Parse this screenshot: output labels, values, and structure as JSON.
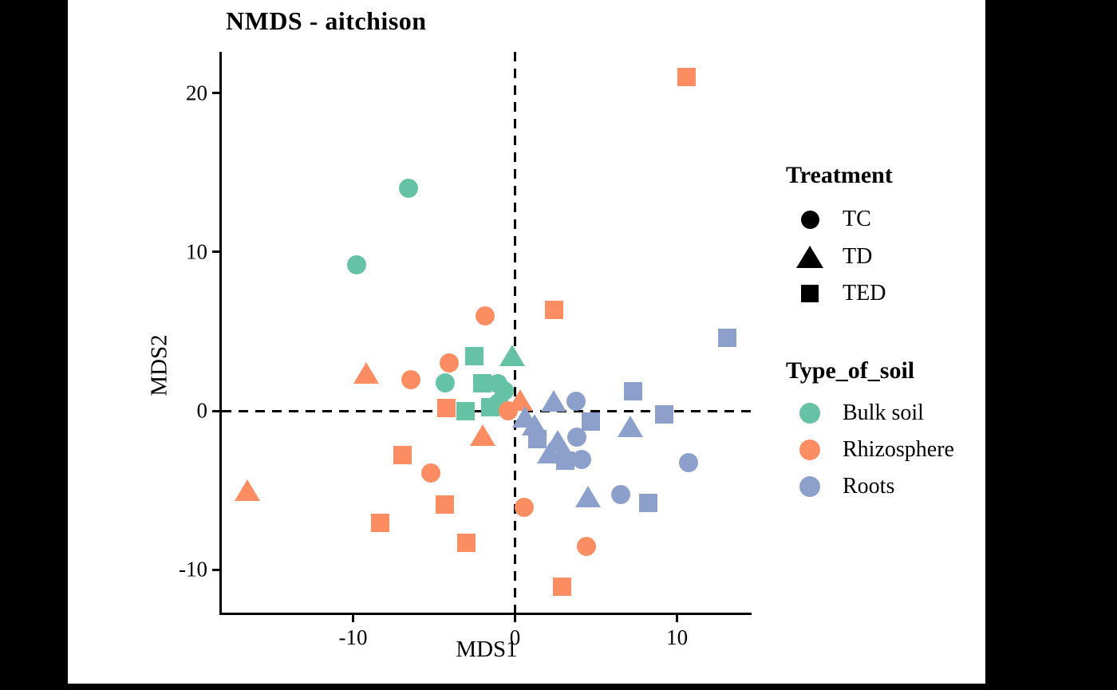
{
  "chart_data": {
    "type": "scatter",
    "title": "NMDS - aitchison",
    "xlabel": "MDS1",
    "ylabel": "MDS2",
    "xlim": [
      -18.1,
      14.6
    ],
    "ylim": [
      -12.7,
      22.6
    ],
    "x_ticks": [
      -10,
      0,
      10
    ],
    "y_ticks": [
      20,
      10,
      0,
      -10
    ],
    "grid": "off",
    "reference_lines": {
      "vertical_x": 0,
      "horizontal_y": 0,
      "style": "dashed",
      "color": "#000000"
    },
    "shape_by_treatment": {
      "TC": "circle",
      "TD": "triangle",
      "TED": "square"
    },
    "series": [
      {
        "name": "Bulk soil",
        "color": "#66C2A5",
        "points": [
          {
            "treatment": "TC",
            "x": -6.6,
            "y": 14.0
          },
          {
            "treatment": "TC",
            "x": -9.8,
            "y": 9.2
          },
          {
            "treatment": "TC",
            "x": -4.3,
            "y": 1.75
          },
          {
            "treatment": "TC",
            "x": -1.05,
            "y": 1.7
          },
          {
            "treatment": "TC",
            "x": -0.65,
            "y": 1.25
          },
          {
            "treatment": "TC",
            "x": -1.0,
            "y": 0.5
          },
          {
            "treatment": "TD",
            "x": -0.15,
            "y": 3.45
          },
          {
            "treatment": "TED",
            "x": -2.5,
            "y": 3.45
          },
          {
            "treatment": "TED",
            "x": -2.0,
            "y": 1.75
          },
          {
            "treatment": "TED",
            "x": -1.55,
            "y": 0.25
          },
          {
            "treatment": "TED",
            "x": -3.05,
            "y": 0.0
          }
        ]
      },
      {
        "name": "Rhizosphere",
        "color": "#FC8D62",
        "points": [
          {
            "treatment": "TED",
            "x": 10.6,
            "y": 21.0
          },
          {
            "treatment": "TC",
            "x": -1.85,
            "y": 6.0
          },
          {
            "treatment": "TED",
            "x": 2.4,
            "y": 6.35
          },
          {
            "treatment": "TD",
            "x": -9.2,
            "y": 2.35
          },
          {
            "treatment": "TC",
            "x": -6.45,
            "y": 1.95
          },
          {
            "treatment": "TC",
            "x": -4.05,
            "y": 3.0
          },
          {
            "treatment": "TED",
            "x": -4.25,
            "y": 0.2
          },
          {
            "treatment": "TC",
            "x": -0.4,
            "y": 0.0
          },
          {
            "treatment": "TD",
            "x": 0.3,
            "y": 0.65
          },
          {
            "treatment": "TD",
            "x": -2.0,
            "y": -1.55
          },
          {
            "treatment": "TED",
            "x": -6.95,
            "y": -2.8
          },
          {
            "treatment": "TC",
            "x": -5.2,
            "y": -3.9
          },
          {
            "treatment": "TD",
            "x": -16.5,
            "y": -5.0
          },
          {
            "treatment": "TED",
            "x": -4.35,
            "y": -5.9
          },
          {
            "treatment": "TED",
            "x": -8.3,
            "y": -7.05
          },
          {
            "treatment": "TED",
            "x": -3.0,
            "y": -8.3
          },
          {
            "treatment": "TC",
            "x": 0.55,
            "y": -6.05
          },
          {
            "treatment": "TC",
            "x": 4.4,
            "y": -8.55
          },
          {
            "treatment": "TED",
            "x": 2.9,
            "y": -11.05
          }
        ]
      },
      {
        "name": "Roots",
        "color": "#8DA0CB",
        "points": [
          {
            "treatment": "TED",
            "x": 13.1,
            "y": 4.6
          },
          {
            "treatment": "TD",
            "x": 2.4,
            "y": 0.6
          },
          {
            "treatment": "TC",
            "x": 3.75,
            "y": 0.6
          },
          {
            "treatment": "TED",
            "x": 7.3,
            "y": 1.25
          },
          {
            "treatment": "TED",
            "x": 9.2,
            "y": -0.2
          },
          {
            "treatment": "TD",
            "x": 0.6,
            "y": -0.4
          },
          {
            "treatment": "TD",
            "x": 1.2,
            "y": -0.9
          },
          {
            "treatment": "TED",
            "x": 1.4,
            "y": -1.8
          },
          {
            "treatment": "TD",
            "x": 2.65,
            "y": -1.9
          },
          {
            "treatment": "TC",
            "x": 3.8,
            "y": -1.65
          },
          {
            "treatment": "TD",
            "x": 2.15,
            "y": -2.65
          },
          {
            "treatment": "TED",
            "x": 3.1,
            "y": -3.15
          },
          {
            "treatment": "TC",
            "x": 4.1,
            "y": -3.05
          },
          {
            "treatment": "TED",
            "x": 4.7,
            "y": -0.65
          },
          {
            "treatment": "TD",
            "x": 7.1,
            "y": -1.0
          },
          {
            "treatment": "TC",
            "x": 10.7,
            "y": -3.25
          },
          {
            "treatment": "TD",
            "x": 4.5,
            "y": -5.4
          },
          {
            "treatment": "TC",
            "x": 6.5,
            "y": -5.25
          },
          {
            "treatment": "TED",
            "x": 8.2,
            "y": -5.8
          }
        ]
      }
    ],
    "legends": {
      "treatment": {
        "title": "Treatment",
        "marker_color": "#000000",
        "items": [
          {
            "label": "TC",
            "shape": "circle"
          },
          {
            "label": "TD",
            "shape": "triangle"
          },
          {
            "label": "TED",
            "shape": "square"
          }
        ]
      },
      "type_of_soil": {
        "title": "Type_of_soil",
        "items": [
          {
            "label": "Bulk soil",
            "color": "#66C2A5"
          },
          {
            "label": "Rhizosphere",
            "color": "#FC8D62"
          },
          {
            "label": "Roots",
            "color": "#8DA0CB"
          }
        ]
      }
    }
  }
}
